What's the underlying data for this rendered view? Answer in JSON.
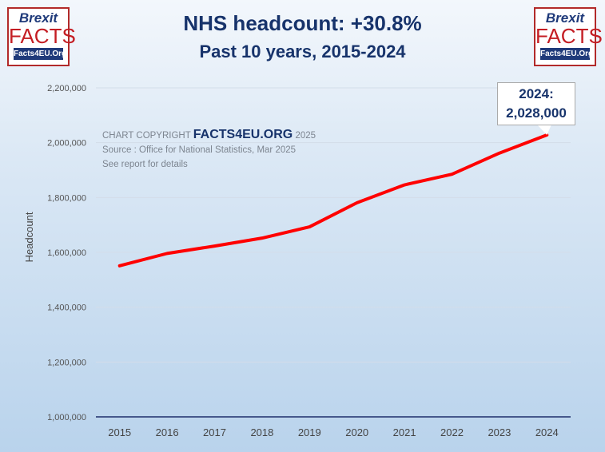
{
  "logos": {
    "top": "Brexit",
    "main": "FACTS",
    "org": "Facts4EU.Org"
  },
  "chart_data": {
    "type": "line",
    "title": "NHS headcount: +30.8%",
    "subtitle": "Past 10 years, 2015-2024",
    "xlabel": "",
    "ylabel": "Headcount",
    "ylim": [
      1000000,
      2200000
    ],
    "yticks": [
      1000000,
      1200000,
      1400000,
      1600000,
      1800000,
      2000000,
      2200000
    ],
    "ytick_labels": [
      "1,000,000",
      "1,200,000",
      "1,400,000",
      "1,600,000",
      "1,800,000",
      "2,000,000",
      "2,200,000"
    ],
    "categories": [
      "2015",
      "2016",
      "2017",
      "2018",
      "2019",
      "2020",
      "2021",
      "2022",
      "2023",
      "2024"
    ],
    "series": [
      {
        "name": "NHS headcount",
        "color": "#ff0000",
        "values": [
          1551000,
          1596000,
          1623000,
          1652000,
          1693000,
          1781000,
          1846000,
          1885000,
          1962000,
          2028000
        ]
      }
    ],
    "grid": true,
    "annotation": {
      "line1": "2024:",
      "line2": "2,028,000"
    },
    "copyright": {
      "prefix": "CHART COPYRIGHT",
      "brand": "FACTS4EU.ORG",
      "year": "2025",
      "source": "Source : Office for National Statistics, Mar 2025",
      "note": "See report for details"
    }
  }
}
